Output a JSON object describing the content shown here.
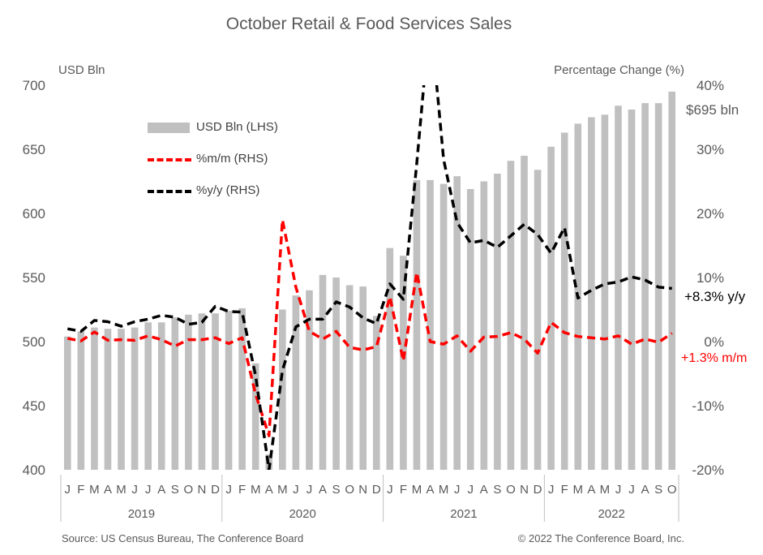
{
  "title": "October Retail & Food Services Sales",
  "left_axis_unit": "USD Bln",
  "right_axis_unit": "Percentage Change (%)",
  "source": "Source: US Census Bureau, The Conference Board",
  "copyright": "© 2022 The Conference Board, Inc.",
  "annotations": {
    "level": "$695 bln",
    "yoy": "+8.3% y/y",
    "mom": "+1.3% m/m"
  },
  "colors": {
    "bar": "#c0c0c0",
    "mom": "#ff0000",
    "yoy": "#000000",
    "mom_annotation": "#ff0000",
    "text": "#595959"
  },
  "chart_data": {
    "type": "bar",
    "x": [
      "J",
      "F",
      "M",
      "A",
      "M",
      "J",
      "J",
      "A",
      "S",
      "O",
      "N",
      "D",
      "J",
      "F",
      "M",
      "A",
      "M",
      "J",
      "J",
      "A",
      "S",
      "O",
      "N",
      "D",
      "J",
      "F",
      "M",
      "A",
      "M",
      "J",
      "J",
      "A",
      "S",
      "O",
      "N",
      "D",
      "J",
      "F",
      "M",
      "A",
      "M",
      "J",
      "J",
      "A",
      "S",
      "O"
    ],
    "groups": [
      {
        "label": "2019",
        "count": 12
      },
      {
        "label": "2020",
        "count": 12
      },
      {
        "label": "2021",
        "count": 12
      },
      {
        "label": "2022",
        "count": 10
      }
    ],
    "left_axis": {
      "min": 400,
      "max": 700,
      "ticks": [
        400,
        450,
        500,
        550,
        600,
        650,
        700
      ]
    },
    "right_axis": {
      "min": -20,
      "max": 40,
      "ticks": [
        "-20%",
        "-10%",
        "0%",
        "10%",
        "20%",
        "30%",
        "40%"
      ]
    },
    "legend_position": "upper-left",
    "grid": false,
    "series": [
      {
        "name": "USD Bln (LHS)",
        "type": "bar",
        "axis": "left",
        "values": [
          504,
          508,
          511,
          510,
          510,
          511,
          515,
          515,
          519,
          521,
          522,
          522,
          524,
          526,
          483,
          412,
          525,
          536,
          540,
          552,
          550,
          544,
          543,
          520,
          573,
          567,
          626,
          626,
          623,
          629,
          619,
          625,
          631,
          641,
          645,
          634,
          652,
          663,
          670,
          675,
          677,
          684,
          681,
          686,
          686,
          695
        ]
      },
      {
        "name": "%m/m (RHS)",
        "type": "line",
        "axis": "right",
        "values": [
          0.5,
          0.1,
          1.5,
          0.2,
          0.3,
          0.2,
          0.9,
          0.3,
          -0.7,
          0.3,
          0.3,
          0.6,
          -0.3,
          0.6,
          -8.2,
          -14.7,
          19.0,
          8.5,
          1.6,
          0.4,
          1.6,
          -0.9,
          -1.3,
          -0.8,
          7.0,
          -3.0,
          10.8,
          0.0,
          -0.4,
          0.9,
          -1.5,
          0.7,
          0.8,
          1.4,
          0.4,
          -1.8,
          3.0,
          1.4,
          0.8,
          0.6,
          0.4,
          0.9,
          -0.4,
          0.4,
          -0.1,
          1.3
        ]
      },
      {
        "name": "%y/y (RHS)",
        "type": "line",
        "axis": "right",
        "values": [
          2.0,
          1.6,
          3.3,
          3.1,
          2.4,
          3.1,
          3.5,
          4.1,
          3.8,
          2.7,
          3.0,
          5.5,
          4.7,
          4.6,
          -5.3,
          -20.0,
          -4.5,
          2.3,
          3.5,
          3.5,
          6.2,
          5.4,
          3.7,
          2.8,
          9.0,
          6.6,
          27.8,
          51.0,
          28.4,
          18.6,
          15.4,
          15.8,
          14.7,
          16.5,
          18.3,
          16.7,
          13.8,
          17.8,
          6.8,
          8.0,
          9.0,
          9.3,
          10.1,
          9.6,
          8.5,
          8.3
        ]
      }
    ]
  }
}
